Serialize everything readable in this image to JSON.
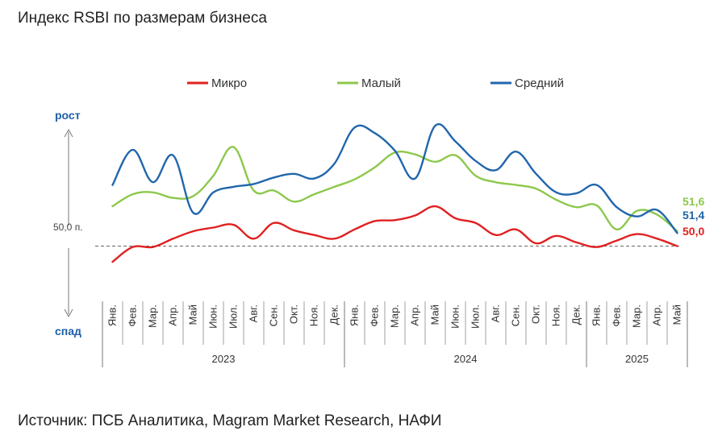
{
  "title": "Индекс RSBI по размерам бизнеса",
  "source": "Источник: ПСБ Аналитика, Magram Market Research, НАФИ",
  "chart_data": {
    "type": "line",
    "title": "Индекс RSBI по размерам бизнеса",
    "categories": [
      "Янв.",
      "Фев.",
      "Мар.",
      "Апр.",
      "Май",
      "Июн.",
      "Июл.",
      "Авг.",
      "Сен.",
      "Окт.",
      "Ноя.",
      "Дек.",
      "Янв.",
      "Фев.",
      "Мар.",
      "Апр.",
      "Май",
      "Июн.",
      "Июл.",
      "Авг.",
      "Сен.",
      "Окт.",
      "Ноя.",
      "Дек.",
      "Янв.",
      "Фев.",
      "Мар.",
      "Апр.",
      "Май"
    ],
    "years": [
      {
        "label": "2023",
        "start": 0,
        "end": 11
      },
      {
        "label": "2024",
        "start": 12,
        "end": 23
      },
      {
        "label": "2025",
        "start": 24,
        "end": 28
      }
    ],
    "ylim": [
      47.0,
      67.0
    ],
    "reference": {
      "value": 50.0,
      "label": "50,0 п."
    },
    "up_label": "рост",
    "down_label": "спад",
    "legend_position": "top",
    "series": [
      {
        "name": "Микро",
        "color": "#e02020",
        "values": [
          48.3,
          49.9,
          49.9,
          50.8,
          51.6,
          52.0,
          52.3,
          50.8,
          52.5,
          51.7,
          51.2,
          50.8,
          51.8,
          52.7,
          52.8,
          53.3,
          54.3,
          53.0,
          52.5,
          51.2,
          51.8,
          50.3,
          51.1,
          50.4,
          49.9,
          50.6,
          51.3,
          50.8,
          50.0
        ],
        "end_label": "50,0"
      },
      {
        "name": "Малый",
        "color": "#8cc84b",
        "values": [
          54.3,
          55.6,
          55.8,
          55.2,
          55.4,
          57.6,
          60.7,
          56.0,
          56.0,
          54.8,
          55.6,
          56.4,
          57.2,
          58.5,
          60.1,
          59.9,
          59.1,
          59.8,
          57.6,
          56.9,
          56.6,
          56.2,
          55.0,
          54.2,
          54.4,
          51.8,
          53.8,
          53.4,
          51.6
        ],
        "end_label": "51,6"
      },
      {
        "name": "Средний",
        "color": "#2166ac",
        "values": [
          56.6,
          60.4,
          56.9,
          59.8,
          53.6,
          55.8,
          56.4,
          56.7,
          57.4,
          57.8,
          57.3,
          58.9,
          62.8,
          62.2,
          60.3,
          57.3,
          63.0,
          61.3,
          59.2,
          58.2,
          60.2,
          57.8,
          55.8,
          55.7,
          56.6,
          54.2,
          53.2,
          53.9,
          51.4
        ],
        "end_label": "51,4"
      }
    ]
  }
}
